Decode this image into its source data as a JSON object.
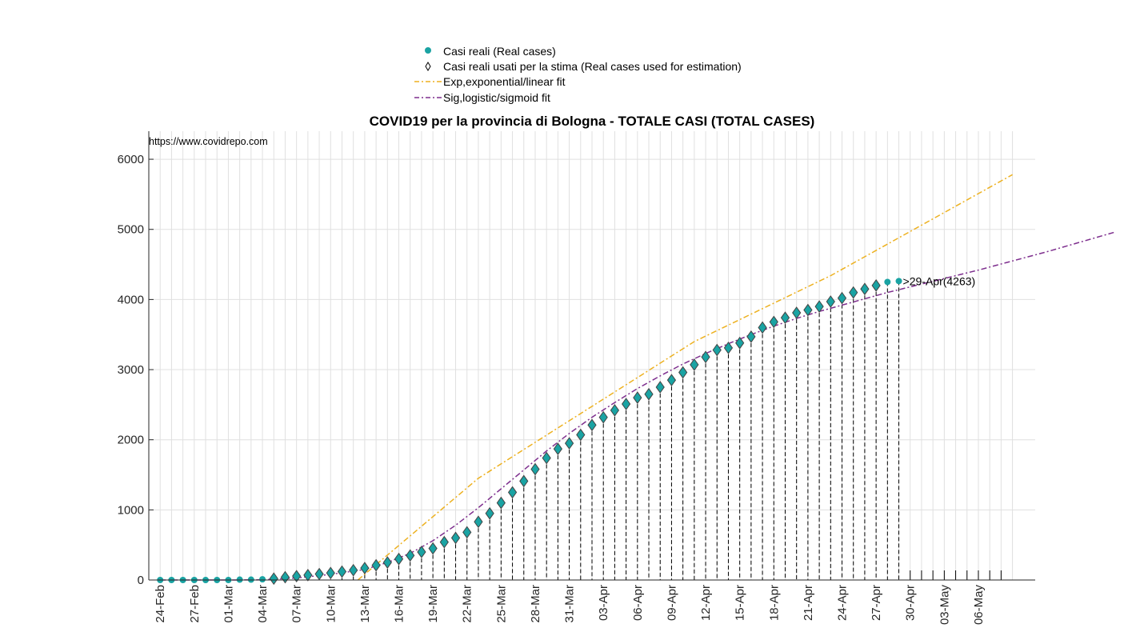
{
  "title": "COVID19 per la provincia di Bologna - TOTALE CASI (TOTAL CASES)",
  "source_note": "https://www.covidrepo.com",
  "legend": [
    {
      "key": "real",
      "label": "Casi reali (Real cases)"
    },
    {
      "key": "used",
      "label": "Casi reali usati per la stima (Real cases used for estimation)"
    },
    {
      "key": "exp",
      "label": "Exp,exponential/linear fit"
    },
    {
      "key": "sig",
      "label": "Sig,logistic/sigmoid fit"
    }
  ],
  "colors": {
    "real_marker": "#1aa3a3",
    "used_marker": "#444444",
    "exp_fit": "#edb120",
    "sig_fit": "#7e2f8e",
    "grid": "#e0e0e0",
    "axis": "#262626",
    "stem": "#000000"
  },
  "chart_data": {
    "type": "scatter",
    "start_date": "24-Feb",
    "x_tick_labels": [
      "24-Feb",
      "27-Feb",
      "01-Mar",
      "04-Mar",
      "07-Mar",
      "10-Mar",
      "13-Mar",
      "16-Mar",
      "19-Mar",
      "22-Mar",
      "25-Mar",
      "28-Mar",
      "31-Mar",
      "03-Apr",
      "06-Apr",
      "09-Apr",
      "12-Apr",
      "15-Apr",
      "18-Apr",
      "21-Apr",
      "24-Apr",
      "27-Apr",
      "30-Apr",
      "03-May",
      "06-May"
    ],
    "x_tick_every_days": 3,
    "x_range_days": [
      -1,
      77
    ],
    "y_ticks": [
      0,
      1000,
      2000,
      3000,
      4000,
      5000,
      6000
    ],
    "ylim": [
      0,
      6400
    ],
    "grid": true,
    "legend_position": "top-center",
    "series": [
      {
        "key": "real",
        "name": "Casi reali (Real cases)",
        "style": "marker",
        "values": [
          0,
          0,
          0,
          0,
          0,
          0,
          0,
          5,
          5,
          10,
          20,
          40,
          55,
          70,
          85,
          100,
          120,
          140,
          170,
          210,
          250,
          300,
          350,
          400,
          450,
          540,
          600,
          680,
          830,
          950,
          1100,
          1250,
          1410,
          1580,
          1740,
          1870,
          1950,
          2070,
          2210,
          2320,
          2420,
          2510,
          2600,
          2650,
          2750,
          2850,
          2960,
          3070,
          3180,
          3280,
          3310,
          3380,
          3470,
          3600,
          3680,
          3740,
          3810,
          3850,
          3900,
          3970,
          4020,
          4100,
          4150,
          4200,
          4250,
          4263
        ]
      },
      {
        "key": "used",
        "name": "Casi reali usati per la stima (Real cases used for estimation)",
        "style": "diamond",
        "start_index": 10,
        "end_index": 63
      },
      {
        "key": "exp",
        "name": "Exp,exponential/linear fit",
        "style": "dash-dot",
        "points": [
          [
            17.4,
            0
          ],
          [
            28,
            1450
          ],
          [
            47,
            3400
          ],
          [
            59,
            4340
          ],
          [
            75,
            5780
          ]
        ]
      },
      {
        "key": "sig",
        "name": "Sig,logistic/sigmoid fit",
        "style": "dash-dot",
        "points": [
          [
            0,
            0
          ],
          [
            3,
            0
          ],
          [
            6,
            0
          ],
          [
            9,
            2
          ],
          [
            12,
            30
          ],
          [
            15,
            80
          ],
          [
            18,
            150
          ],
          [
            20,
            250
          ],
          [
            22,
            380
          ],
          [
            24,
            560
          ],
          [
            26,
            780
          ],
          [
            28,
            1030
          ],
          [
            30,
            1300
          ],
          [
            32,
            1570
          ],
          [
            34,
            1840
          ],
          [
            36,
            2090
          ],
          [
            38,
            2320
          ],
          [
            40,
            2530
          ],
          [
            42,
            2730
          ],
          [
            44,
            2910
          ],
          [
            46,
            3080
          ],
          [
            48,
            3230
          ],
          [
            50,
            3370
          ],
          [
            52,
            3500
          ],
          [
            54,
            3620
          ],
          [
            56,
            3730
          ],
          [
            58,
            3830
          ],
          [
            60,
            3920
          ],
          [
            62,
            4010
          ],
          [
            64,
            4100
          ],
          [
            66,
            4180
          ],
          [
            68,
            4260
          ],
          [
            70,
            4340
          ],
          [
            72,
            4420
          ],
          [
            75,
            4550
          ],
          [
            78,
            4680
          ],
          [
            81,
            4820
          ],
          [
            84,
            4960
          ]
        ]
      }
    ],
    "annotation": {
      "text": ">29-Apr(4263)",
      "day": 65,
      "value": 4263
    }
  }
}
